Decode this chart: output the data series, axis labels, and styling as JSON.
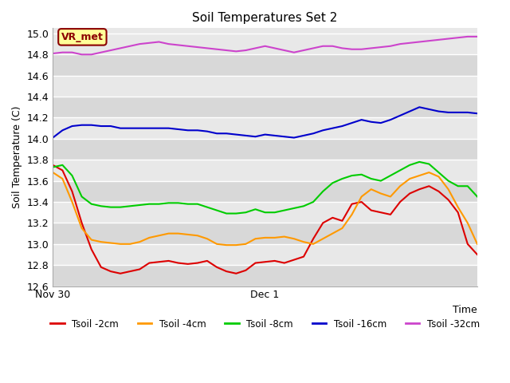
{
  "title": "Soil Temperatures Set 2",
  "xlabel": "Time",
  "ylabel": "Soil Temperature (C)",
  "xlim": [
    0,
    1
  ],
  "ylim": [
    12.6,
    15.05
  ],
  "yticks": [
    12.6,
    12.8,
    13.0,
    13.2,
    13.4,
    13.6,
    13.8,
    14.0,
    14.2,
    14.4,
    14.6,
    14.8,
    15.0
  ],
  "xtick_positions": [
    0.0,
    0.5,
    1.0
  ],
  "xtick_labels": [
    "Nov 30",
    "Dec 1",
    ""
  ],
  "fig_bg_color": "#ffffff",
  "plot_bg_color": "#e8e8e8",
  "band_color_1": "#e8e8e8",
  "band_color_2": "#d8d8d8",
  "annotation_text": "VR_met",
  "annotation_bg": "#ffff99",
  "annotation_border": "#8b0000",
  "series": {
    "Tsoil_2cm": {
      "color": "#dd0000",
      "label": "Tsoil -2cm",
      "y": [
        13.75,
        13.7,
        13.5,
        13.2,
        12.95,
        12.78,
        12.74,
        12.72,
        12.74,
        12.76,
        12.82,
        12.83,
        12.84,
        12.82,
        12.81,
        12.82,
        12.84,
        12.78,
        12.74,
        12.72,
        12.75,
        12.82,
        12.83,
        12.84,
        12.82,
        12.85,
        12.88,
        13.05,
        13.2,
        13.25,
        13.22,
        13.38,
        13.4,
        13.32,
        13.3,
        13.28,
        13.4,
        13.48,
        13.52,
        13.55,
        13.5,
        13.42,
        13.3,
        13.0,
        12.9
      ]
    },
    "Tsoil_4cm": {
      "color": "#ff9900",
      "label": "Tsoil -4cm",
      "y": [
        13.68,
        13.62,
        13.4,
        13.15,
        13.04,
        13.02,
        13.01,
        13.0,
        13.0,
        13.02,
        13.06,
        13.08,
        13.1,
        13.1,
        13.09,
        13.08,
        13.05,
        13.0,
        12.99,
        12.99,
        13.0,
        13.05,
        13.06,
        13.06,
        13.07,
        13.05,
        13.02,
        13.0,
        13.05,
        13.1,
        13.15,
        13.28,
        13.45,
        13.52,
        13.48,
        13.45,
        13.55,
        13.62,
        13.65,
        13.68,
        13.64,
        13.52,
        13.35,
        13.2,
        13.0
      ]
    },
    "Tsoil_8cm": {
      "color": "#00cc00",
      "label": "Tsoil -8cm",
      "y": [
        13.73,
        13.75,
        13.65,
        13.45,
        13.38,
        13.36,
        13.35,
        13.35,
        13.36,
        13.37,
        13.38,
        13.38,
        13.39,
        13.39,
        13.38,
        13.38,
        13.35,
        13.32,
        13.29,
        13.29,
        13.3,
        13.33,
        13.3,
        13.3,
        13.32,
        13.34,
        13.36,
        13.4,
        13.5,
        13.58,
        13.62,
        13.65,
        13.66,
        13.62,
        13.6,
        13.65,
        13.7,
        13.75,
        13.78,
        13.76,
        13.68,
        13.6,
        13.55,
        13.55,
        13.45
      ]
    },
    "Tsoil_16cm": {
      "color": "#0000cc",
      "label": "Tsoil -16cm",
      "y": [
        14.01,
        14.08,
        14.12,
        14.13,
        14.13,
        14.12,
        14.12,
        14.1,
        14.1,
        14.1,
        14.1,
        14.1,
        14.1,
        14.09,
        14.08,
        14.08,
        14.07,
        14.05,
        14.05,
        14.04,
        14.03,
        14.02,
        14.04,
        14.03,
        14.02,
        14.01,
        14.03,
        14.05,
        14.08,
        14.1,
        14.12,
        14.15,
        14.18,
        14.16,
        14.15,
        14.18,
        14.22,
        14.26,
        14.3,
        14.28,
        14.26,
        14.25,
        14.25,
        14.25,
        14.24
      ]
    },
    "Tsoil_32cm": {
      "color": "#cc44cc",
      "label": "Tsoil -32cm",
      "y": [
        14.81,
        14.82,
        14.82,
        14.8,
        14.8,
        14.82,
        14.84,
        14.86,
        14.88,
        14.9,
        14.91,
        14.92,
        14.9,
        14.89,
        14.88,
        14.87,
        14.86,
        14.85,
        14.84,
        14.83,
        14.84,
        14.86,
        14.88,
        14.86,
        14.84,
        14.82,
        14.84,
        14.86,
        14.88,
        14.88,
        14.86,
        14.85,
        14.85,
        14.86,
        14.87,
        14.88,
        14.9,
        14.91,
        14.92,
        14.93,
        14.94,
        14.95,
        14.96,
        14.97,
        14.97
      ]
    }
  }
}
